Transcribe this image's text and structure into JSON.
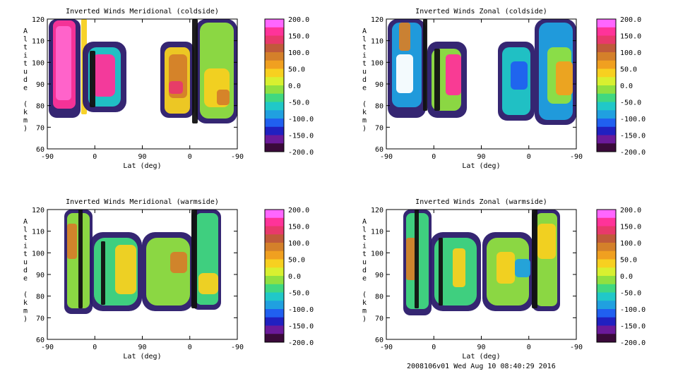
{
  "footer": "2008106v01 Wed Aug 10 08:40:29 2016",
  "colorbar": {
    "labels": [
      "200.0",
      "150.0",
      "100.0",
      "50.0",
      "0.0",
      "-50.0",
      "-100.0",
      "-150.0",
      "-200.0"
    ],
    "colors": [
      "#ff66ff",
      "#ff3399",
      "#e8396b",
      "#c05a3a",
      "#d4802a",
      "#f0a020",
      "#f7d020",
      "#d8f030",
      "#90e040",
      "#40d880",
      "#20c8c8",
      "#20a0e0",
      "#2060f0",
      "#2020c0",
      "#6a1a9a",
      "#3a0a3a"
    ]
  },
  "chart_data": [
    {
      "type": "heatmap",
      "title": "Inverted Winds Meridional (coldside)",
      "xlabel": "Lat (deg)",
      "ylabel": "Altitude (km)",
      "x_ticks": [
        "-90",
        "0",
        "90",
        "0",
        "-90"
      ],
      "y_ticks": [
        60,
        70,
        80,
        90,
        100,
        110,
        120
      ],
      "ylim": [
        60,
        120
      ],
      "zlim": [
        -200,
        200
      ]
    },
    {
      "type": "heatmap",
      "title": "Inverted Winds Zonal (coldside)",
      "xlabel": "Lat (deg)",
      "ylabel": "Altitude (km)",
      "x_ticks": [
        "-90",
        "0",
        "90",
        "0",
        "-90"
      ],
      "y_ticks": [
        60,
        70,
        80,
        90,
        100,
        110,
        120
      ],
      "ylim": [
        60,
        120
      ],
      "zlim": [
        -200,
        200
      ]
    },
    {
      "type": "heatmap",
      "title": "Inverted Winds Meridional (warmside)",
      "xlabel": "Lat (deg)",
      "ylabel": "Altitude (km)",
      "x_ticks": [
        "-90",
        "0",
        "90",
        "0",
        "-90"
      ],
      "y_ticks": [
        60,
        70,
        80,
        90,
        100,
        110,
        120
      ],
      "ylim": [
        60,
        120
      ],
      "zlim": [
        -200,
        200
      ]
    },
    {
      "type": "heatmap",
      "title": "Inverted Winds Zonal (warmside)",
      "xlabel": "Lat (deg)",
      "ylabel": "Altitude (km)",
      "x_ticks": [
        "-90",
        "0",
        "90",
        "0",
        "-90"
      ],
      "y_ticks": [
        60,
        70,
        80,
        90,
        100,
        110,
        120
      ],
      "ylim": [
        60,
        120
      ],
      "zlim": [
        -200,
        200
      ]
    }
  ]
}
